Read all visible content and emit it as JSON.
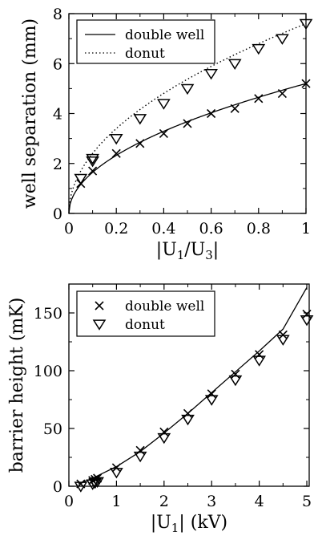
{
  "chart_data": [
    {
      "type": "line",
      "ylabel": "well separation (mm)",
      "xlabel_main": "|U",
      "xlabel_sub": "1",
      "xlabel_mid": "/U",
      "xlabel_sub2": "3",
      "xlabel_end": "|",
      "xlim": [
        0,
        1
      ],
      "ylim": [
        0,
        8
      ],
      "x_ticks": [
        "0",
        "0.2",
        "0.4",
        "0.6",
        "0.8",
        "1"
      ],
      "y_ticks": [
        "0",
        "2",
        "4",
        "6",
        "8"
      ],
      "x_tick_values": [
        0,
        0.2,
        0.4,
        0.6,
        0.8,
        1.0
      ],
      "y_tick_values": [
        0,
        2,
        4,
        6,
        8
      ],
      "legend_position": "top-left",
      "legend": [
        {
          "label": "double well",
          "style": "solid"
        },
        {
          "label": "donut",
          "style": "dotted"
        }
      ],
      "series": [
        {
          "name": "double well",
          "kind": "curve",
          "style": "solid",
          "coef": 5.2,
          "exponent": 0.5
        },
        {
          "name": "donut",
          "kind": "curve",
          "style": "dotted",
          "coef": 7.6,
          "exponent": 0.5
        },
        {
          "name": "double well",
          "kind": "markers",
          "marker": "x",
          "x": [
            0.05,
            0.1,
            0.2,
            0.3,
            0.4,
            0.5,
            0.6,
            0.7,
            0.8,
            0.9,
            1.0
          ],
          "y": [
            1.2,
            1.7,
            2.4,
            2.8,
            3.2,
            3.6,
            4.0,
            4.2,
            4.6,
            4.8,
            5.2
          ]
        },
        {
          "name": "donut",
          "kind": "markers",
          "marker": "triangle-down",
          "x": [
            0.05,
            0.1,
            0.1,
            0.2,
            0.3,
            0.4,
            0.5,
            0.6,
            0.7,
            0.8,
            0.9,
            1.0
          ],
          "y": [
            1.4,
            2.1,
            2.2,
            3.0,
            3.8,
            4.4,
            5.0,
            5.6,
            6.0,
            6.6,
            7.0,
            7.6
          ]
        }
      ]
    },
    {
      "type": "scatter",
      "ylabel": "barrier height (mK)",
      "xlabel_main": "|U",
      "xlabel_sub": "1",
      "xlabel_end": "| (kV)",
      "xlim": [
        0,
        5.05
      ],
      "ylim": [
        0,
        175
      ],
      "x_ticks": [
        "0",
        "1",
        "2",
        "3",
        "4",
        "5"
      ],
      "y_ticks": [
        "0",
        "50",
        "100",
        "150"
      ],
      "x_tick_values": [
        0,
        1,
        2,
        3,
        4,
        5
      ],
      "y_tick_values": [
        0,
        50,
        100,
        150
      ],
      "legend_position": "top-left",
      "legend": [
        {
          "label": "double well",
          "marker": "x"
        },
        {
          "label": "donut",
          "marker": "triangle-down"
        }
      ],
      "series": [
        {
          "name": "line",
          "kind": "polyline",
          "style": "solid",
          "x": [
            0.2,
            0.5,
            1.0,
            1.5,
            2.0,
            2.5,
            3.0,
            3.5,
            4.0,
            4.5,
            5.0
          ],
          "y": [
            2,
            7,
            17,
            30,
            46,
            63,
            81,
            99,
            117,
            136,
            172
          ]
        },
        {
          "name": "double well",
          "kind": "markers",
          "marker": "x",
          "x": [
            0.25,
            0.5,
            0.55,
            0.6,
            1.0,
            1.5,
            2.0,
            2.5,
            3.0,
            3.5,
            4.0,
            4.5,
            5.0
          ],
          "y": [
            2,
            5,
            6,
            7,
            16,
            31,
            47,
            63,
            80,
            97,
            114,
            131,
            149
          ]
        },
        {
          "name": "donut",
          "kind": "markers",
          "marker": "triangle-down",
          "x": [
            0.25,
            0.5,
            0.55,
            0.6,
            1.0,
            1.5,
            2.0,
            2.5,
            3.0,
            3.5,
            4.0,
            4.5,
            5.0
          ],
          "y": [
            0,
            2,
            3,
            4,
            12,
            26,
            42,
            58,
            75,
            92,
            109,
            127,
            144
          ]
        }
      ]
    }
  ]
}
